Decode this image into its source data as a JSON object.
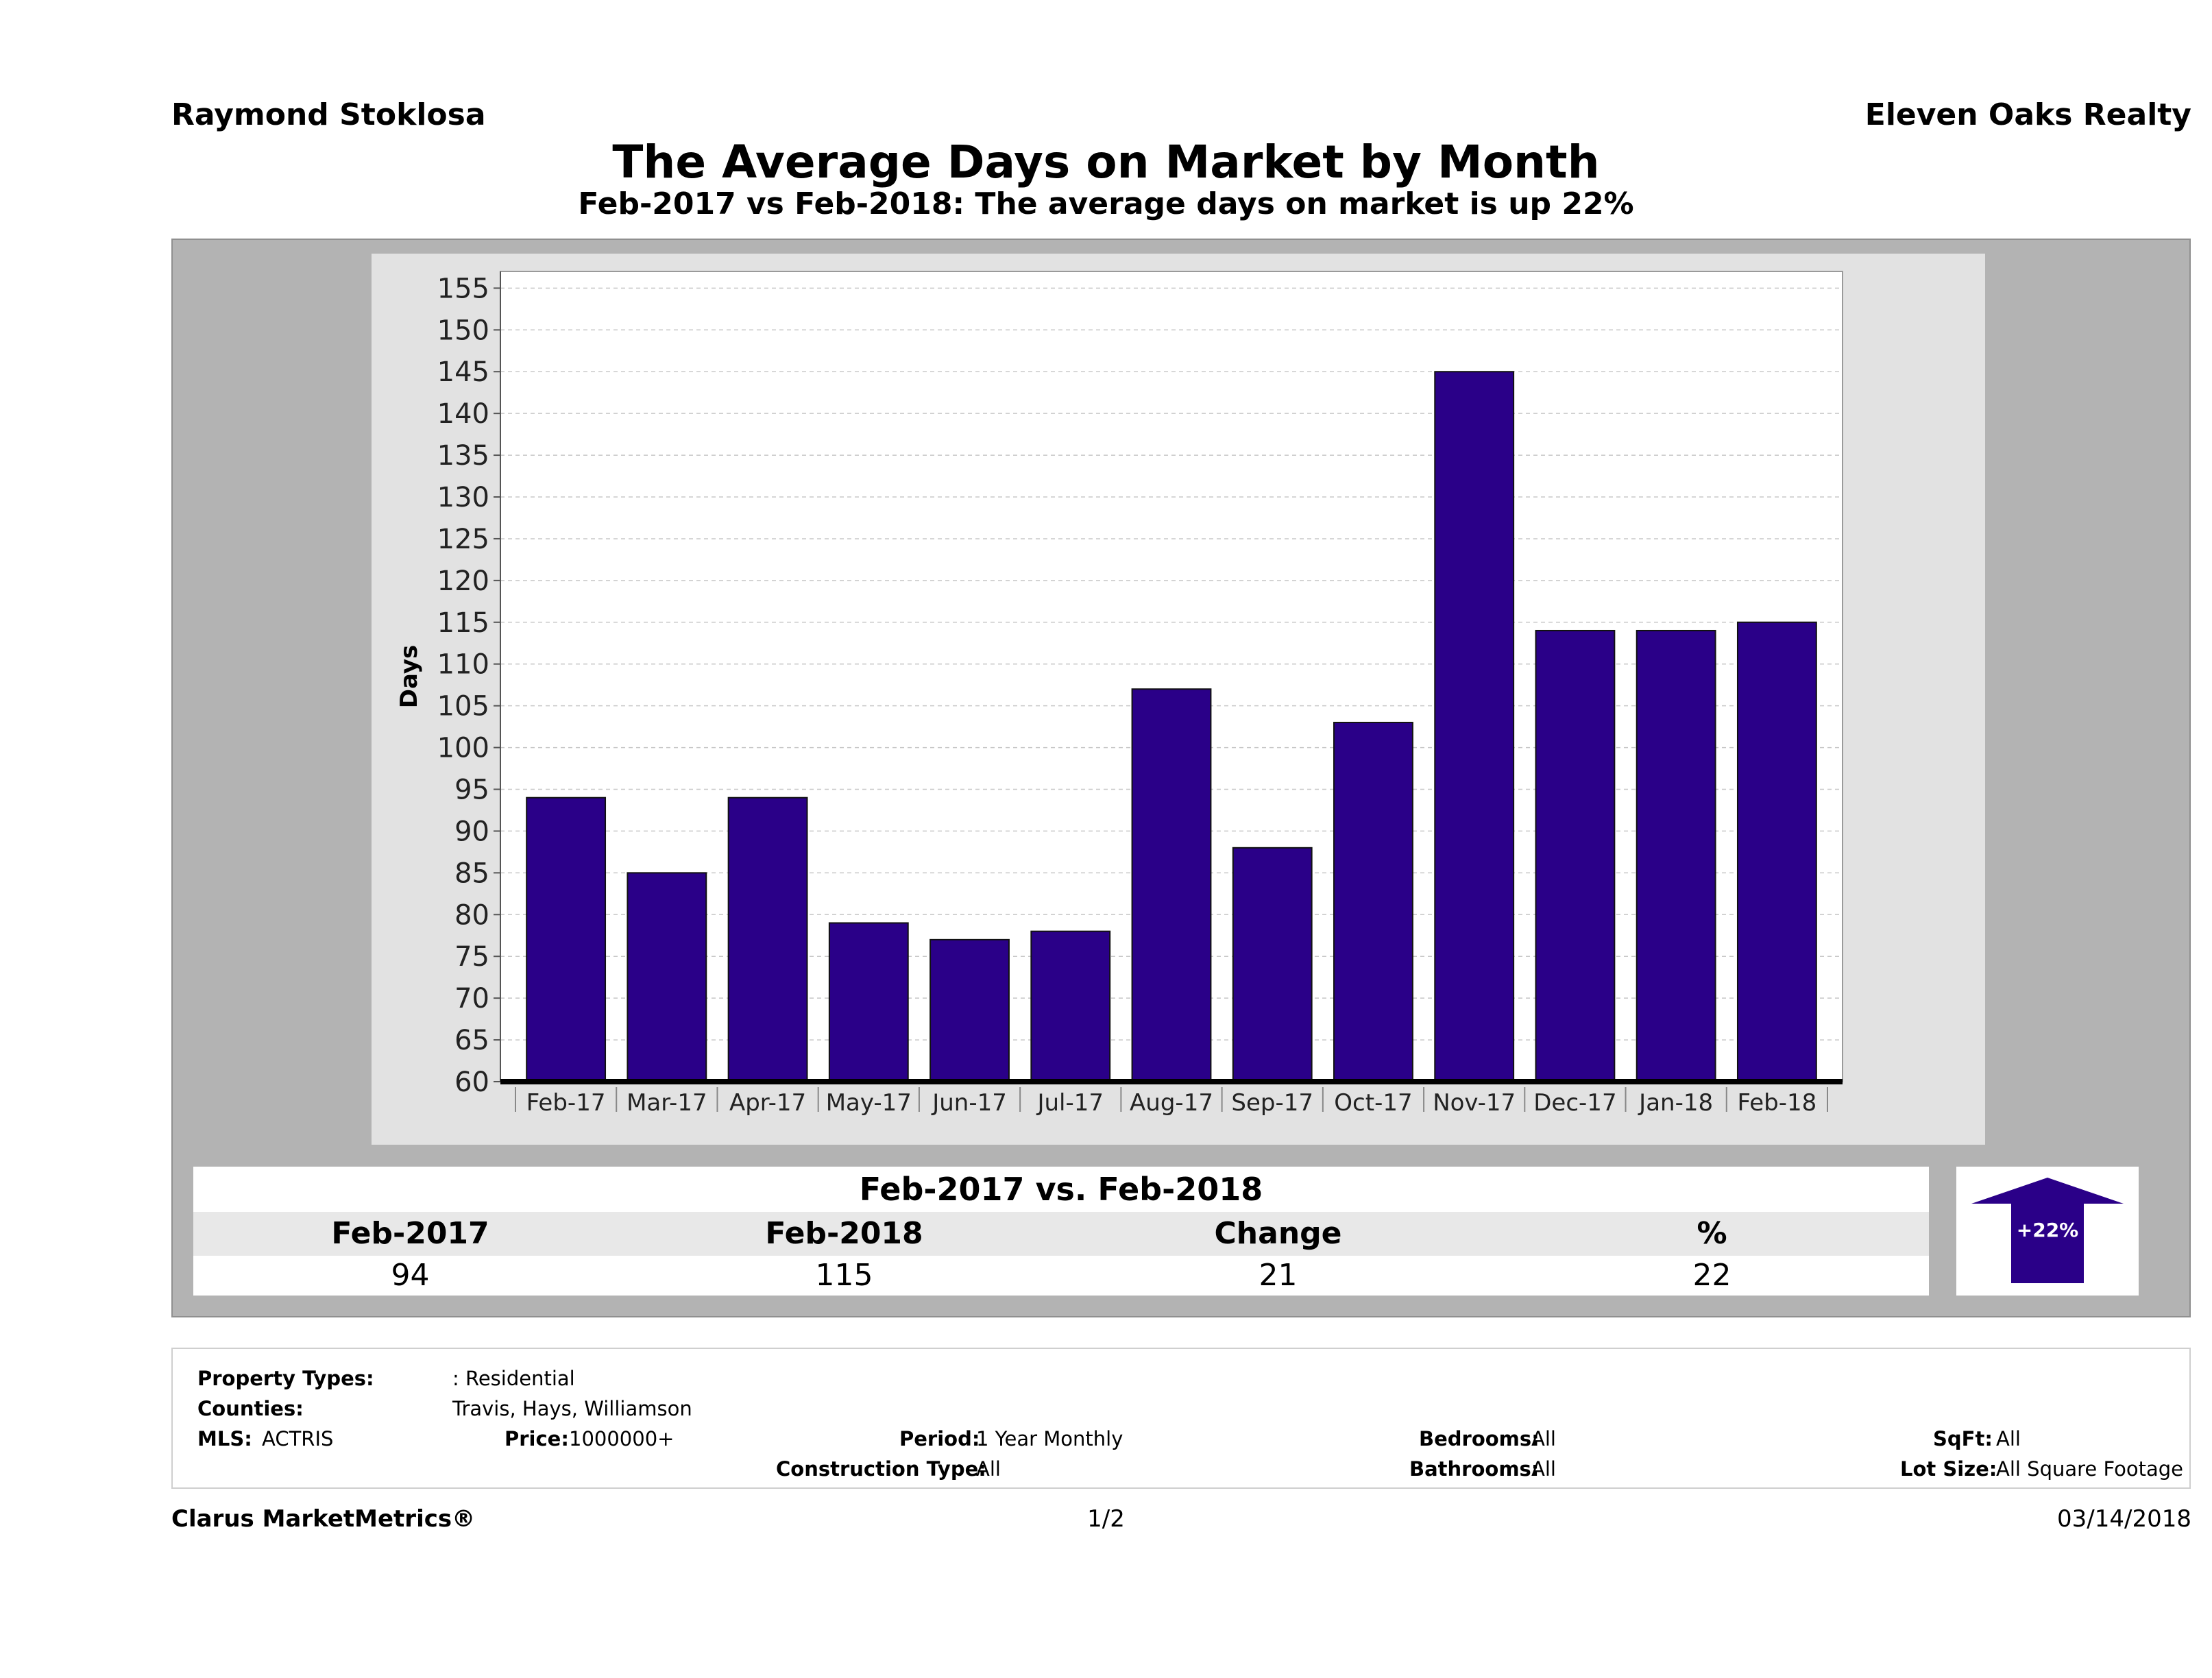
{
  "header": {
    "agent": "Raymond Stoklosa",
    "company": "Eleven Oaks Realty",
    "title": "The Average Days on Market by Month",
    "subtitle": "Feb-2017 vs Feb-2018: The average days on market is up 22%"
  },
  "chart_data": {
    "type": "bar",
    "categories": [
      "Feb-17",
      "Mar-17",
      "Apr-17",
      "May-17",
      "Jun-17",
      "Jul-17",
      "Aug-17",
      "Sep-17",
      "Oct-17",
      "Nov-17",
      "Dec-17",
      "Jan-18",
      "Feb-18"
    ],
    "values": [
      94,
      85,
      94,
      79,
      77,
      78,
      107,
      88,
      103,
      145,
      114,
      114,
      115
    ],
    "ylabel": "Days",
    "xlabel": "",
    "ylim": [
      60,
      157
    ],
    "yticks": [
      60,
      65,
      70,
      75,
      80,
      85,
      90,
      95,
      100,
      105,
      110,
      115,
      120,
      125,
      130,
      135,
      140,
      145,
      150,
      155
    ],
    "grid": true,
    "bar_color": "#2a0088"
  },
  "comparison": {
    "title": "Feb-2017 vs. Feb-2018",
    "headers": [
      "Feb-2017",
      "Feb-2018",
      "Change",
      "%"
    ],
    "values": [
      "94",
      "115",
      "21",
      "22"
    ],
    "badge": "+22%",
    "arrow_color": "#2a0088"
  },
  "filters": {
    "property_types_label": "Property Types:",
    "property_types_value": ": Residential",
    "counties_label": "Counties:",
    "counties_value": "Travis, Hays, Williamson",
    "mls_label": "MLS:",
    "mls_value": "ACTRIS",
    "price_label": "Price:",
    "price_value": "1000000+",
    "period_label": "Period:",
    "period_value": "1 Year Monthly",
    "construction_label": "Construction Type:",
    "construction_value": "All",
    "bedrooms_label": "Bedrooms:",
    "bedrooms_value": "All",
    "bathrooms_label": "Bathrooms:",
    "bathrooms_value": "All",
    "sqft_label": "SqFt:",
    "sqft_value": "All",
    "lotsize_label": "Lot Size:",
    "lotsize_value": "All Square Footage"
  },
  "footer": {
    "brand": "Clarus MarketMetrics®",
    "page": "1/2",
    "date": "03/14/2018"
  }
}
